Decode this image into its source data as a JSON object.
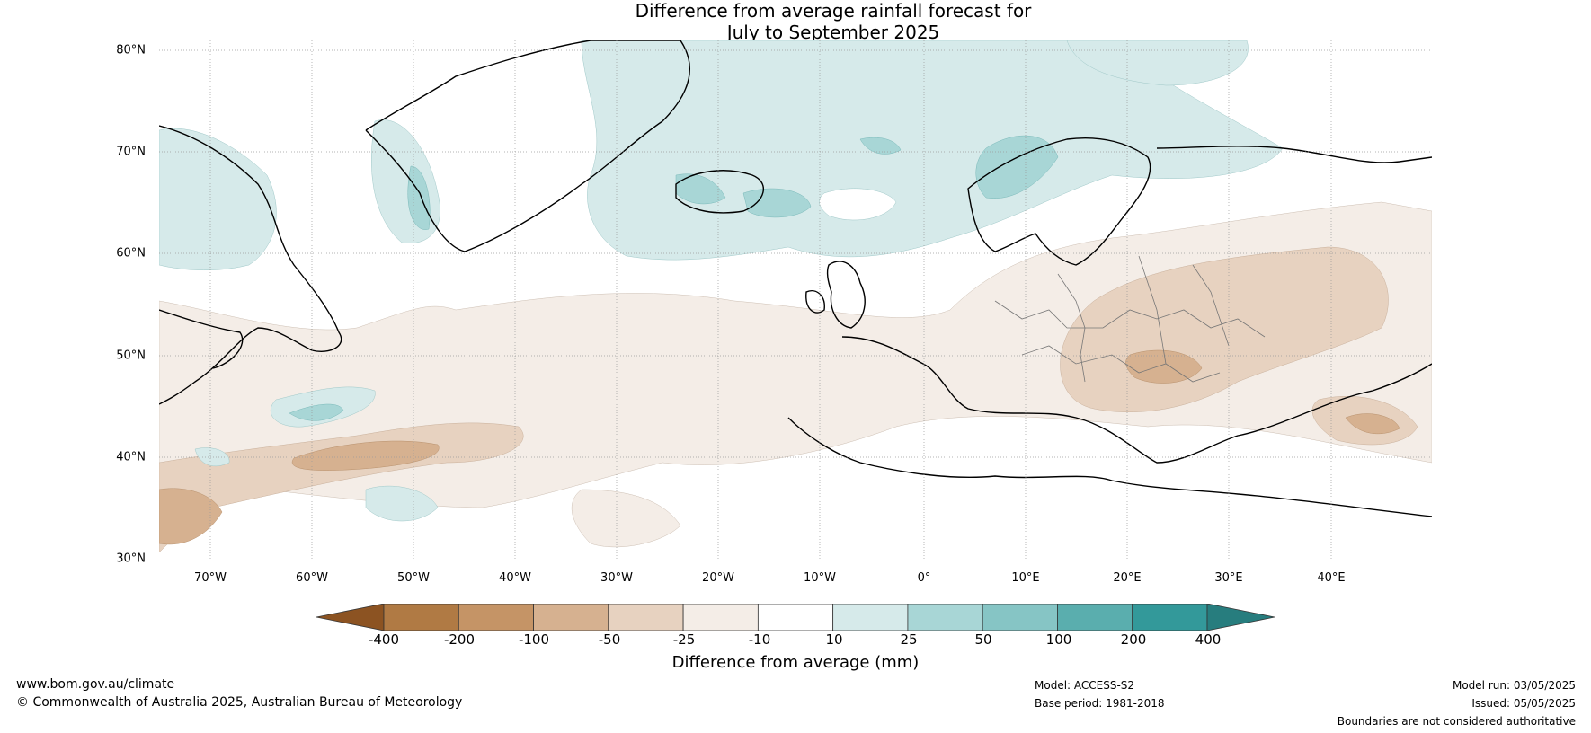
{
  "title": {
    "line1": "Difference from average rainfall forecast for",
    "line2": "July to September 2025"
  },
  "axes": {
    "lat_labels": [
      "80°N",
      "70°N",
      "60°N",
      "50°N",
      "40°N",
      "30°N"
    ],
    "lon_labels": [
      "70°W",
      "60°W",
      "50°W",
      "40°W",
      "30°W",
      "20°W",
      "10°W",
      "0°",
      "10°E",
      "20°E",
      "30°E",
      "40°E"
    ]
  },
  "colorbar": {
    "ticks": [
      "-400",
      "-200",
      "-100",
      "-50",
      "-25",
      "-10",
      "10",
      "25",
      "50",
      "100",
      "200",
      "400"
    ],
    "colors": [
      "#8c5322",
      "#b07a44",
      "#c59466",
      "#d6b190",
      "#e7d2c0",
      "#f4ede7",
      "#ffffff",
      "#d6eaea",
      "#a8d6d6",
      "#86c5c5",
      "#5aaeae",
      "#33999a",
      "#277d7e"
    ],
    "label": "Difference from average (mm)"
  },
  "footer": {
    "website": "www.bom.gov.au/climate",
    "copyright": "© Commonwealth of Australia 2025, Australian Bureau of Meteorology",
    "model": "Model: ACCESS-S2",
    "base_period": "Base period: 1981-2018",
    "model_run": "Model run: 03/05/2025",
    "issued": "Issued: 05/05/2025",
    "disclaimer": "Boundaries are not considered authoritative"
  }
}
